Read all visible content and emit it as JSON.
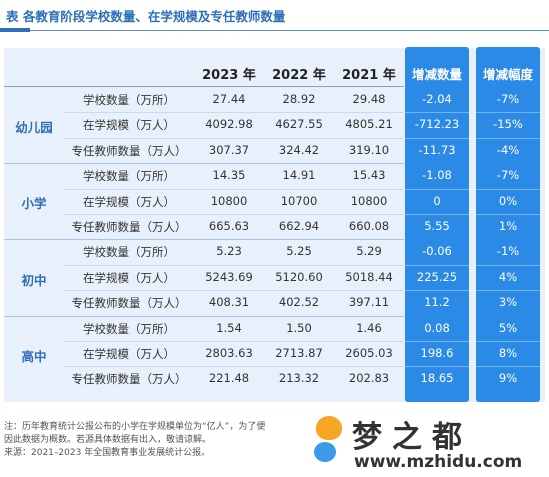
{
  "title": "表 各教育阶段学校数量、在学规模及专任教师数量",
  "colors": {
    "accent": "#2d6fb8",
    "highlight": "#2b8ae6",
    "table_bg": "#e8f1fb"
  },
  "chart_data": {
    "type": "table",
    "columns": [
      "2023 年",
      "2022 年",
      "2021 年",
      "增减数量",
      "增减幅度"
    ],
    "groups": [
      {
        "name": "幼儿园",
        "rows": [
          {
            "indicator": "学校数量（万所）",
            "v2023": "27.44",
            "v2022": "28.92",
            "v2021": "29.48",
            "change": "-2.04",
            "pct": "-7%"
          },
          {
            "indicator": "在学规模（万人）",
            "v2023": "4092.98",
            "v2022": "4627.55",
            "v2021": "4805.21",
            "change": "-712.23",
            "pct": "-15%"
          },
          {
            "indicator": "专任教师数量（万人）",
            "v2023": "307.37",
            "v2022": "324.42",
            "v2021": "319.10",
            "change": "-11.73",
            "pct": "-4%"
          }
        ]
      },
      {
        "name": "小学",
        "rows": [
          {
            "indicator": "学校数量（万所）",
            "v2023": "14.35",
            "v2022": "14.91",
            "v2021": "15.43",
            "change": "-1.08",
            "pct": "-7%"
          },
          {
            "indicator": "在学规模（万人）",
            "v2023": "10800",
            "v2022": "10700",
            "v2021": "10800",
            "change": "0",
            "pct": "0%"
          },
          {
            "indicator": "专任教师数量（万人）",
            "v2023": "665.63",
            "v2022": "662.94",
            "v2021": "660.08",
            "change": "5.55",
            "pct": "1%"
          }
        ]
      },
      {
        "name": "初中",
        "rows": [
          {
            "indicator": "学校数量（万所）",
            "v2023": "5.23",
            "v2022": "5.25",
            "v2021": "5.29",
            "change": "-0.06",
            "pct": "-1%"
          },
          {
            "indicator": "在学规模（万人）",
            "v2023": "5243.69",
            "v2022": "5120.60",
            "v2021": "5018.44",
            "change": "225.25",
            "pct": "4%"
          },
          {
            "indicator": "专任教师数量（万人）",
            "v2023": "408.31",
            "v2022": "402.52",
            "v2021": "397.11",
            "change": "11.2",
            "pct": "3%"
          }
        ]
      },
      {
        "name": "高中",
        "rows": [
          {
            "indicator": "学校数量（万所）",
            "v2023": "1.54",
            "v2022": "1.50",
            "v2021": "1.46",
            "change": "0.08",
            "pct": "5%"
          },
          {
            "indicator": "在学规模（万人）",
            "v2023": "2803.63",
            "v2022": "2713.87",
            "v2021": "2605.03",
            "change": "198.6",
            "pct": "8%"
          },
          {
            "indicator": "专任教师数量（万人）",
            "v2023": "221.48",
            "v2022": "213.32",
            "v2021": "202.83",
            "change": "18.65",
            "pct": "9%"
          }
        ]
      }
    ]
  },
  "notes": [
    "注：历年教育统计公报公布的小学在学规模单位为“亿人”，为了便",
    "因此数据为概数。若源具体数据有出入，敬请谅解。",
    "来源：2021–2023 年全国教育事业发展统计公报。"
  ],
  "logo": {
    "brand": "梦之都",
    "url": "www.mzhidu.com"
  }
}
